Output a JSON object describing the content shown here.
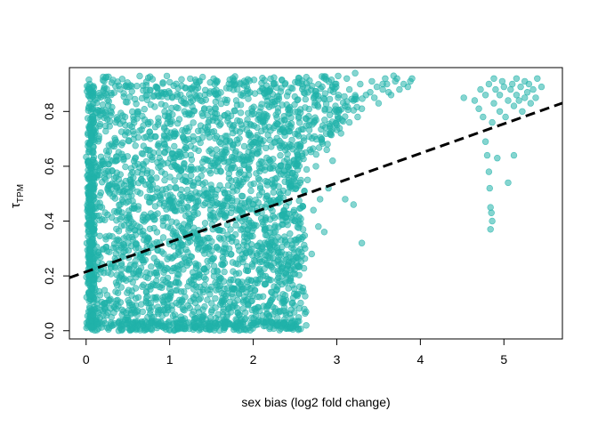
{
  "chart_data": {
    "type": "scatter",
    "title": "",
    "xlabel": "sex bias (log2 fold change)",
    "ylabel_main": "τ",
    "ylabel_sub": "TPM",
    "xlim": [
      -0.2,
      5.7
    ],
    "ylim": [
      -0.03,
      0.96
    ],
    "x_ticks": [
      0,
      1,
      2,
      3,
      4,
      5
    ],
    "x_tick_labels": [
      "0",
      "1",
      "2",
      "3",
      "4",
      "5"
    ],
    "y_ticks": [
      0.0,
      0.2,
      0.4,
      0.6,
      0.8
    ],
    "y_tick_labels": [
      "0.0",
      "0.2",
      "0.4",
      "0.6",
      "0.8"
    ],
    "grid": false,
    "legend": "none",
    "point_color": "#20B2AA",
    "trend_color": "#000000",
    "trend_line": {
      "style": "dashed",
      "intercept": 0.215,
      "slope": 0.108
    },
    "dense_region": {
      "x_min": 0.0,
      "x_max": 2.7,
      "y_min": 0.0,
      "y_max": 0.93
    },
    "outlier_points": [
      [
        2.55,
        0.34
      ],
      [
        2.62,
        0.3
      ],
      [
        2.7,
        0.28
      ],
      [
        2.78,
        0.38
      ],
      [
        2.85,
        0.36
      ],
      [
        2.72,
        0.44
      ],
      [
        2.8,
        0.48
      ],
      [
        2.9,
        0.52
      ],
      [
        2.65,
        0.55
      ],
      [
        2.75,
        0.6
      ],
      [
        2.95,
        0.62
      ],
      [
        2.88,
        0.66
      ],
      [
        3.1,
        0.48
      ],
      [
        3.3,
        0.32
      ],
      [
        3.2,
        0.46
      ],
      [
        2.82,
        0.7
      ],
      [
        3.05,
        0.72
      ],
      [
        3.15,
        0.76
      ],
      [
        3.25,
        0.78
      ],
      [
        2.92,
        0.74
      ],
      [
        3.0,
        0.8
      ],
      [
        3.1,
        0.82
      ],
      [
        3.2,
        0.84
      ],
      [
        3.35,
        0.86
      ],
      [
        3.45,
        0.85
      ],
      [
        3.55,
        0.88
      ],
      [
        3.6,
        0.9
      ],
      [
        3.7,
        0.91
      ],
      [
        3.8,
        0.9
      ],
      [
        3.9,
        0.92
      ],
      [
        3.75,
        0.88
      ],
      [
        3.85,
        0.89
      ],
      [
        3.5,
        0.83
      ],
      [
        3.4,
        0.87
      ],
      [
        3.65,
        0.86
      ],
      [
        3.3,
        0.81
      ],
      [
        3.02,
        0.86
      ],
      [
        3.15,
        0.88
      ],
      [
        3.28,
        0.9
      ],
      [
        3.42,
        0.91
      ],
      [
        3.58,
        0.92
      ],
      [
        3.68,
        0.93
      ],
      [
        3.12,
        0.92
      ],
      [
        2.98,
        0.9
      ],
      [
        3.22,
        0.94
      ],
      [
        3.48,
        0.89
      ],
      [
        3.62,
        0.87
      ],
      [
        3.88,
        0.91
      ],
      [
        3.72,
        0.92
      ],
      [
        3.55,
        0.9
      ],
      [
        4.52,
        0.85
      ],
      [
        4.65,
        0.84
      ],
      [
        4.7,
        0.81
      ],
      [
        4.75,
        0.78
      ],
      [
        4.78,
        0.69
      ],
      [
        4.8,
        0.64
      ],
      [
        4.82,
        0.58
      ],
      [
        4.83,
        0.52
      ],
      [
        4.84,
        0.45
      ],
      [
        4.85,
        0.43
      ],
      [
        4.86,
        0.4
      ],
      [
        4.84,
        0.37
      ],
      [
        4.92,
        0.63
      ],
      [
        5.05,
        0.54
      ],
      [
        5.12,
        0.64
      ],
      [
        4.72,
        0.88
      ],
      [
        4.78,
        0.86
      ],
      [
        4.82,
        0.9
      ],
      [
        4.88,
        0.83
      ],
      [
        4.9,
        0.88
      ],
      [
        4.95,
        0.86
      ],
      [
        5.0,
        0.89
      ],
      [
        5.05,
        0.84
      ],
      [
        5.08,
        0.88
      ],
      [
        5.1,
        0.9
      ],
      [
        5.15,
        0.86
      ],
      [
        5.18,
        0.84
      ],
      [
        5.2,
        0.89
      ],
      [
        5.25,
        0.91
      ],
      [
        5.28,
        0.87
      ],
      [
        5.3,
        0.9
      ],
      [
        5.35,
        0.88
      ],
      [
        5.4,
        0.92
      ],
      [
        5.45,
        0.89
      ],
      [
        5.38,
        0.85
      ],
      [
        4.95,
        0.8
      ],
      [
        5.02,
        0.78
      ],
      [
        5.12,
        0.82
      ],
      [
        5.22,
        0.8
      ],
      [
        4.86,
        0.76
      ],
      [
        4.98,
        0.91
      ],
      [
        5.15,
        0.92
      ],
      [
        4.88,
        0.92
      ],
      [
        5.25,
        0.85
      ],
      [
        5.32,
        0.83
      ]
    ]
  }
}
